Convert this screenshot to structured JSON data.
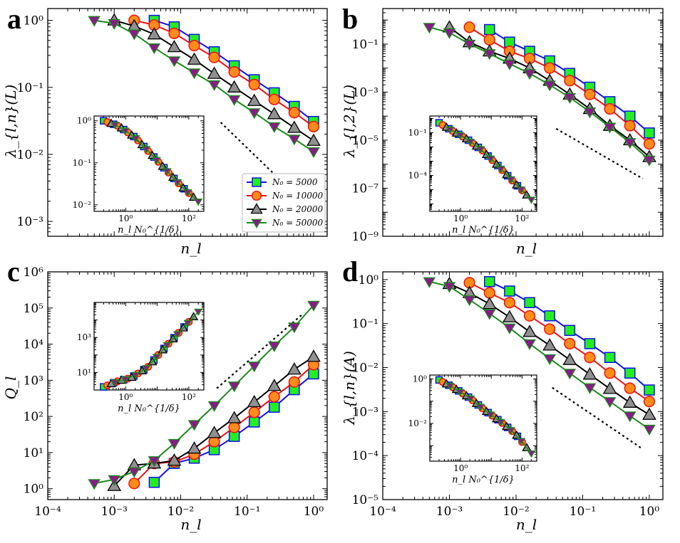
{
  "figure": {
    "panel_labels": [
      "a",
      "b",
      "c",
      "d"
    ]
  },
  "legend": {
    "entries": [
      "N₀ = 5000",
      "N₀ = 10000",
      "N₀ = 20000",
      "N₀ = 50000"
    ]
  },
  "series_style": [
    {
      "name": "N₀ = 5000",
      "marker": "square",
      "fill": "#22ee22",
      "line": "#1010ee"
    },
    {
      "name": "N₀ = 10000",
      "marker": "circle",
      "fill": "#ff8c1a",
      "line": "#ee1010"
    },
    {
      "name": "N₀ = 20000",
      "marker": "triangle-up",
      "fill": "#909090",
      "line": "#000000"
    },
    {
      "name": "N₀ = 50000",
      "marker": "triangle-down",
      "fill": "#8a1a8a",
      "line": "#1a8a1a"
    }
  ],
  "chart_data": [
    {
      "panel": "a",
      "type": "line",
      "xscale": "log",
      "yscale": "log",
      "xlabel": "n_l",
      "ylabel": "λ_{l,n}(L)",
      "xlim": [
        0.0001,
        1.6
      ],
      "ylim": [
        0.0006,
        1.5
      ],
      "xticks": [],
      "yticks": [
        0.001,
        0.01,
        0.1,
        1
      ],
      "ytick_labels": [
        "10⁻³",
        "10⁻²",
        "10⁻¹",
        "10⁰"
      ],
      "guide_line": {
        "x": [
          0.04,
          0.8
        ],
        "y": [
          0.03,
          0.0017
        ]
      },
      "series": [
        {
          "name": "N₀ = 5000",
          "x": [
            0.004,
            0.008,
            0.016,
            0.032,
            0.064,
            0.128,
            0.256,
            0.512,
            1.0
          ],
          "y": [
            1.0,
            0.8,
            0.52,
            0.34,
            0.21,
            0.13,
            0.083,
            0.052,
            0.031
          ]
        },
        {
          "name": "N₀ = 10000",
          "x": [
            0.002,
            0.004,
            0.008,
            0.016,
            0.032,
            0.064,
            0.128,
            0.256,
            0.512,
            1.0
          ],
          "y": [
            1.0,
            0.85,
            0.64,
            0.42,
            0.28,
            0.17,
            0.11,
            0.066,
            0.042,
            0.026
          ]
        },
        {
          "name": "N₀ = 20000",
          "x": [
            0.001,
            0.002,
            0.004,
            0.008,
            0.016,
            0.032,
            0.064,
            0.128,
            0.256,
            0.512,
            1.0
          ],
          "y": [
            1.0,
            0.82,
            0.62,
            0.4,
            0.26,
            0.16,
            0.1,
            0.063,
            0.04,
            0.025,
            0.016
          ]
        },
        {
          "name": "N₀ = 50000",
          "x": [
            0.0005,
            0.001,
            0.002,
            0.004,
            0.008,
            0.016,
            0.032,
            0.064,
            0.128,
            0.256,
            0.512,
            1.0
          ],
          "y": [
            1.0,
            0.9,
            0.63,
            0.39,
            0.25,
            0.165,
            0.11,
            0.066,
            0.042,
            0.026,
            0.017,
            0.011
          ]
        }
      ],
      "inset": {
        "xlabel": "n_l N₀^{1/δ}",
        "xlim": [
          0.1,
          300
        ],
        "ylim": [
          0.007,
          1.3
        ],
        "xticks": [
          1,
          100
        ],
        "xtick_labels": [
          "10⁰",
          "10²"
        ],
        "yticks": [
          0.01,
          0.1,
          1
        ],
        "ytick_labels": [
          "10⁻²",
          "10⁻¹",
          "10⁰"
        ],
        "collapse": {
          "x": [
            0.2,
            0.6,
            2,
            6,
            20,
            60,
            200
          ],
          "y": [
            1.0,
            0.75,
            0.4,
            0.17,
            0.065,
            0.027,
            0.012
          ]
        }
      }
    },
    {
      "panel": "b",
      "type": "line",
      "xscale": "log",
      "yscale": "log",
      "xlabel": "n_l",
      "ylabel": "λ_{l,2}(L)",
      "xlim": [
        0.0001,
        1.6
      ],
      "ylim": [
        1e-09,
        3
      ],
      "xticks": [],
      "yticks": [
        1e-09,
        1e-07,
        1e-05,
        0.001,
        0.1
      ],
      "ytick_labels": [
        "10⁻⁹",
        "10⁻⁷",
        "10⁻⁵",
        "10⁻³",
        "10⁻¹"
      ],
      "guide_line": {
        "x": [
          0.04,
          0.8
        ],
        "y": [
          3e-05,
          2.5e-07
        ]
      },
      "series": [
        {
          "name": "N₀ = 5000",
          "x": [
            0.004,
            0.008,
            0.016,
            0.032,
            0.064,
            0.128,
            0.256,
            0.512,
            1.0
          ],
          "y": [
            0.4,
            0.12,
            0.05,
            0.02,
            0.006,
            0.0016,
            0.0004,
            0.0001,
            2e-05
          ]
        },
        {
          "name": "N₀ = 10000",
          "x": [
            0.002,
            0.004,
            0.008,
            0.016,
            0.032,
            0.064,
            0.128,
            0.256,
            0.512,
            1.0
          ],
          "y": [
            0.5,
            0.15,
            0.05,
            0.025,
            0.01,
            0.003,
            0.0008,
            0.0002,
            4e-05,
            7e-06
          ]
        },
        {
          "name": "N₀ = 20000",
          "x": [
            0.001,
            0.002,
            0.004,
            0.008,
            0.016,
            0.032,
            0.064,
            0.128,
            0.256,
            0.512,
            1.0
          ],
          "y": [
            0.5,
            0.12,
            0.05,
            0.025,
            0.01,
            0.003,
            0.0008,
            0.0002,
            4e-05,
            1e-05,
            2e-06
          ]
        },
        {
          "name": "N₀ = 50000",
          "x": [
            0.0005,
            0.001,
            0.002,
            0.004,
            0.008,
            0.016,
            0.032,
            0.064,
            0.128,
            0.256,
            0.512,
            1.0
          ],
          "y": [
            0.5,
            0.3,
            0.1,
            0.04,
            0.015,
            0.006,
            0.002,
            0.0006,
            0.00015,
            3.5e-05,
            8e-06,
            1.5e-06
          ]
        }
      ],
      "inset": {
        "xlabel": "n_l N₀^{1/δ}",
        "xlim": [
          0.1,
          300
        ],
        "ylim": [
          3e-07,
          1.5
        ],
        "xticks": [
          1,
          100
        ],
        "xtick_labels": [
          "10⁰",
          "10²"
        ],
        "yticks": [
          0.0001,
          0.1
        ],
        "ytick_labels": [
          "10⁻⁴",
          "10⁻¹"
        ],
        "collapse": {
          "x": [
            0.2,
            0.5,
            1.5,
            5,
            15,
            50,
            200
          ],
          "y": [
            0.5,
            0.15,
            0.04,
            0.006,
            0.0006,
            4e-05,
            2e-06
          ]
        }
      }
    },
    {
      "panel": "c",
      "type": "line",
      "xscale": "log",
      "yscale": "log",
      "xlabel": "n_l",
      "ylabel": "Q_l",
      "xlim": [
        0.0001,
        1.6
      ],
      "ylim": [
        0.5,
        1000000
      ],
      "xticks": [
        0.0001,
        0.001,
        0.01,
        0.1,
        1
      ],
      "xtick_labels": [
        "10⁻⁴",
        "10⁻³",
        "10⁻²",
        "10⁻¹",
        "10⁰"
      ],
      "yticks": [
        1,
        10,
        100,
        1000,
        10000,
        100000,
        1000000
      ],
      "ytick_labels": [
        "10⁰",
        "10¹",
        "10²",
        "10³",
        "10⁴",
        "10⁵",
        "10⁶"
      ],
      "guide_line": {
        "x": [
          0.035,
          0.7
        ],
        "y": [
          600,
          70000
        ]
      },
      "series": [
        {
          "name": "N₀ = 5000",
          "x": [
            0.004,
            0.008,
            0.016,
            0.032,
            0.064,
            0.128,
            0.256,
            0.512,
            1.0
          ],
          "y": [
            1.5,
            5,
            7,
            12,
            28,
            70,
            180,
            550,
            1500
          ]
        },
        {
          "name": "N₀ = 10000",
          "x": [
            0.002,
            0.004,
            0.008,
            0.016,
            0.032,
            0.064,
            0.128,
            0.256,
            0.512,
            1.0
          ],
          "y": [
            1.4,
            5,
            5.5,
            9,
            20,
            50,
            130,
            350,
            900,
            2700
          ]
        },
        {
          "name": "N₀ = 20000",
          "x": [
            0.001,
            0.002,
            0.004,
            0.008,
            0.016,
            0.032,
            0.064,
            0.128,
            0.256,
            0.512,
            1.0
          ],
          "y": [
            1.2,
            4.5,
            5,
            6,
            13,
            35,
            90,
            250,
            700,
            2000,
            4500
          ]
        },
        {
          "name": "N₀ = 50000",
          "x": [
            0.0005,
            0.001,
            0.002,
            0.004,
            0.008,
            0.016,
            0.032,
            0.064,
            0.128,
            0.256,
            0.512,
            1.0
          ],
          "y": [
            1.4,
            1.8,
            3,
            6,
            18,
            60,
            200,
            700,
            2500,
            9000,
            30000,
            120000
          ]
        }
      ],
      "inset": {
        "xlabel": "n_l N₀^{1/δ}",
        "xlim": [
          0.1,
          300
        ],
        "ylim": [
          1,
          100000
        ],
        "xticks": [
          1,
          100
        ],
        "xtick_labels": [
          "10⁰",
          "10²"
        ],
        "yticks": [
          10,
          1000
        ],
        "ytick_labels": [
          "10¹",
          "10³"
        ],
        "collapse": {
          "x": [
            0.2,
            0.5,
            1.5,
            5,
            15,
            50,
            200
          ],
          "y": [
            1.5,
            3,
            5,
            20,
            200,
            2000,
            30000
          ]
        }
      }
    },
    {
      "panel": "d",
      "type": "line",
      "xscale": "log",
      "yscale": "log",
      "xlabel": "n_l",
      "ylabel": "λ_{l,n}(A)",
      "xlim": [
        0.0001,
        1.6
      ],
      "ylim": [
        1e-05,
        1.5
      ],
      "xticks": [
        0.0001,
        0.001,
        0.01,
        0.1,
        1
      ],
      "xtick_labels": [
        "10⁻⁴",
        "10⁻³",
        "10⁻²",
        "10⁻¹",
        "10⁰"
      ],
      "yticks": [
        1e-05,
        0.0001,
        0.001,
        0.01,
        0.1,
        1
      ],
      "ytick_labels": [
        "10⁻⁵",
        "10⁻⁴",
        "10⁻³",
        "10⁻²",
        "10⁻¹",
        "10⁰"
      ],
      "guide_line": {
        "x": [
          0.035,
          0.8
        ],
        "y": [
          0.0035,
          0.00014
        ]
      },
      "series": [
        {
          "name": "N₀ = 5000",
          "x": [
            0.004,
            0.008,
            0.016,
            0.032,
            0.064,
            0.128,
            0.256,
            0.512,
            1.0
          ],
          "y": [
            0.9,
            0.55,
            0.3,
            0.15,
            0.07,
            0.035,
            0.017,
            0.0075,
            0.0031
          ]
        },
        {
          "name": "N₀ = 10000",
          "x": [
            0.002,
            0.004,
            0.008,
            0.016,
            0.032,
            0.064,
            0.128,
            0.256,
            0.512,
            1.0
          ],
          "y": [
            0.85,
            0.5,
            0.3,
            0.15,
            0.075,
            0.035,
            0.017,
            0.0075,
            0.0034,
            0.0017
          ]
        },
        {
          "name": "N₀ = 20000",
          "x": [
            0.001,
            0.002,
            0.004,
            0.008,
            0.016,
            0.032,
            0.064,
            0.128,
            0.256,
            0.512,
            1.0
          ],
          "y": [
            0.8,
            0.5,
            0.28,
            0.14,
            0.065,
            0.032,
            0.015,
            0.007,
            0.0033,
            0.0016,
            0.00085
          ]
        },
        {
          "name": "N₀ = 50000",
          "x": [
            0.0005,
            0.001,
            0.002,
            0.004,
            0.008,
            0.016,
            0.032,
            0.064,
            0.128,
            0.256,
            0.512,
            1.0
          ],
          "y": [
            0.9,
            0.7,
            0.35,
            0.17,
            0.08,
            0.035,
            0.016,
            0.0075,
            0.0035,
            0.0017,
            0.0008,
            0.0004
          ]
        }
      ],
      "inset": {
        "xlabel": "n_l N₀^{1/δ}",
        "xlim": [
          0.1,
          300
        ],
        "ylim": [
          0.0002,
          1.5
        ],
        "xticks": [
          1,
          100
        ],
        "xtick_labels": [
          "10⁰",
          "10²"
        ],
        "yticks": [
          0.01,
          1
        ],
        "ytick_labels": [
          "10⁻²",
          "10⁰"
        ],
        "collapse": {
          "x": [
            0.2,
            0.6,
            2,
            6,
            20,
            60,
            200
          ],
          "y": [
            0.9,
            0.4,
            0.14,
            0.04,
            0.012,
            0.0035,
            0.00045
          ]
        }
      }
    }
  ]
}
